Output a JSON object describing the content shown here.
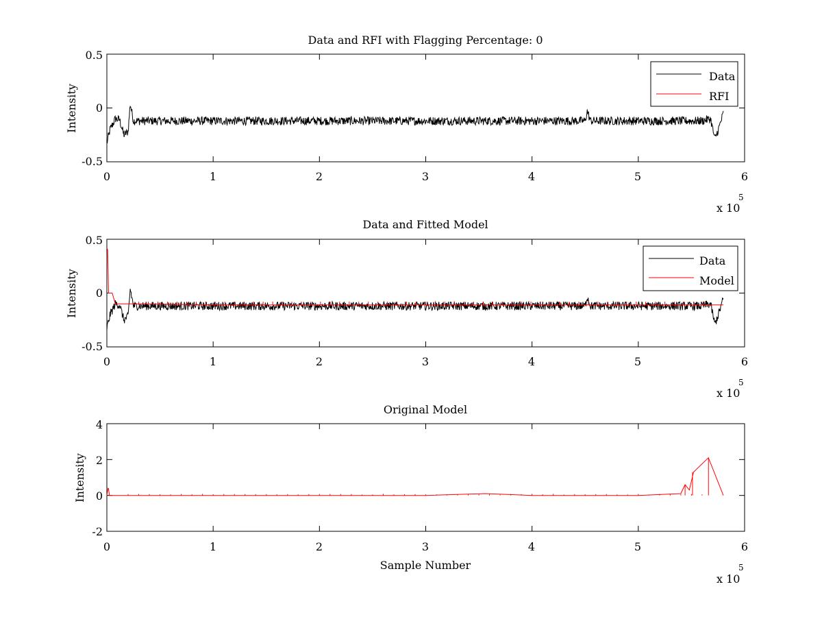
{
  "colors": {
    "data": "#000000",
    "rfi": "#ff0000",
    "axes": "#000000",
    "background": "#ffffff"
  },
  "chart_data": [
    {
      "type": "line",
      "title": "Data and RFI with Flagging Percentage: 0",
      "xlabel": "",
      "ylabel": "Intensity",
      "xlim": [
        0,
        600000
      ],
      "ylim": [
        -0.5,
        0.5
      ],
      "xticks": [
        0,
        1,
        2,
        3,
        4,
        5,
        6
      ],
      "yticks": [
        "-0.5",
        "0",
        "0.5"
      ],
      "x_exponent_label": "x 10",
      "x_exponent_power": "5",
      "legend": {
        "position": "top-right",
        "entries": [
          "Data",
          "RFI"
        ]
      },
      "series": [
        {
          "name": "Data",
          "color": "#000000",
          "x": [
            0,
            3000,
            8000,
            12000,
            16000,
            20000,
            22000,
            25000,
            40000,
            100000,
            200000,
            300000,
            400000,
            450000,
            452000,
            455000,
            500000,
            560000,
            568000,
            572000,
            576000,
            580000
          ],
          "y": [
            -0.33,
            -0.2,
            -0.1,
            -0.11,
            -0.25,
            -0.22,
            0.04,
            -0.12,
            -0.12,
            -0.12,
            -0.12,
            -0.12,
            -0.12,
            -0.12,
            -0.03,
            -0.12,
            -0.12,
            -0.12,
            -0.1,
            -0.29,
            -0.18,
            -0.05
          ]
        }
      ]
    },
    {
      "type": "line",
      "title": "Data and Fitted Model",
      "xlabel": "",
      "ylabel": "Intensity",
      "xlim": [
        0,
        600000
      ],
      "ylim": [
        -0.5,
        0.5
      ],
      "xticks": [
        0,
        1,
        2,
        3,
        4,
        5,
        6
      ],
      "yticks": [
        "-0.5",
        "0",
        "0.5"
      ],
      "x_exponent_label": "x 10",
      "x_exponent_power": "5",
      "legend": {
        "position": "top-right",
        "entries": [
          "Data",
          "Model"
        ]
      },
      "series": [
        {
          "name": "Data",
          "color": "#000000",
          "x": [
            0,
            3000,
            8000,
            12000,
            16000,
            20000,
            22000,
            25000,
            40000,
            100000,
            200000,
            300000,
            400000,
            450000,
            452000,
            455000,
            500000,
            560000,
            568000,
            572000,
            576000,
            580000
          ],
          "y": [
            -0.33,
            -0.2,
            -0.1,
            -0.11,
            -0.25,
            -0.22,
            0.04,
            -0.12,
            -0.12,
            -0.12,
            -0.12,
            -0.12,
            -0.12,
            -0.12,
            -0.03,
            -0.12,
            -0.12,
            -0.12,
            -0.1,
            -0.29,
            -0.18,
            -0.05
          ]
        },
        {
          "name": "Model",
          "color": "#ff0000",
          "x": [
            0,
            800,
            1600,
            2400,
            3000,
            5000,
            8000,
            30000,
            100000,
            200000,
            300000,
            400000,
            500000,
            580000
          ],
          "y": [
            0.42,
            0.4,
            0.0,
            0.0,
            0.0,
            0.0,
            -0.1,
            -0.1,
            -0.11,
            -0.11,
            -0.11,
            -0.11,
            -0.11,
            -0.11
          ]
        }
      ]
    },
    {
      "type": "line",
      "title": "Original Model",
      "xlabel": "Sample Number",
      "ylabel": "Intensity",
      "xlim": [
        0,
        600000
      ],
      "ylim": [
        -2,
        4
      ],
      "xticks": [
        0,
        1,
        2,
        3,
        4,
        5,
        6
      ],
      "yticks": [
        "-2",
        "0",
        "2",
        "4"
      ],
      "x_exponent_label": "x 10",
      "x_exponent_power": "5",
      "series": [
        {
          "name": "",
          "color": "#ff0000",
          "x": [
            0,
            1000,
            1500,
            2500,
            100000,
            200000,
            300000,
            356000,
            400000,
            500000,
            540000,
            544000,
            548000,
            552000,
            566000,
            580000
          ],
          "y": [
            0,
            0.4,
            0.38,
            0,
            0,
            0,
            0,
            0.1,
            0,
            0,
            0.1,
            0.6,
            0.3,
            1.3,
            2.1,
            0
          ]
        }
      ],
      "spikes": [
        {
          "x": 544000,
          "y": 0.6
        },
        {
          "x": 551000,
          "y": 1.3
        },
        {
          "x": 566000,
          "y": 2.1
        }
      ]
    }
  ]
}
